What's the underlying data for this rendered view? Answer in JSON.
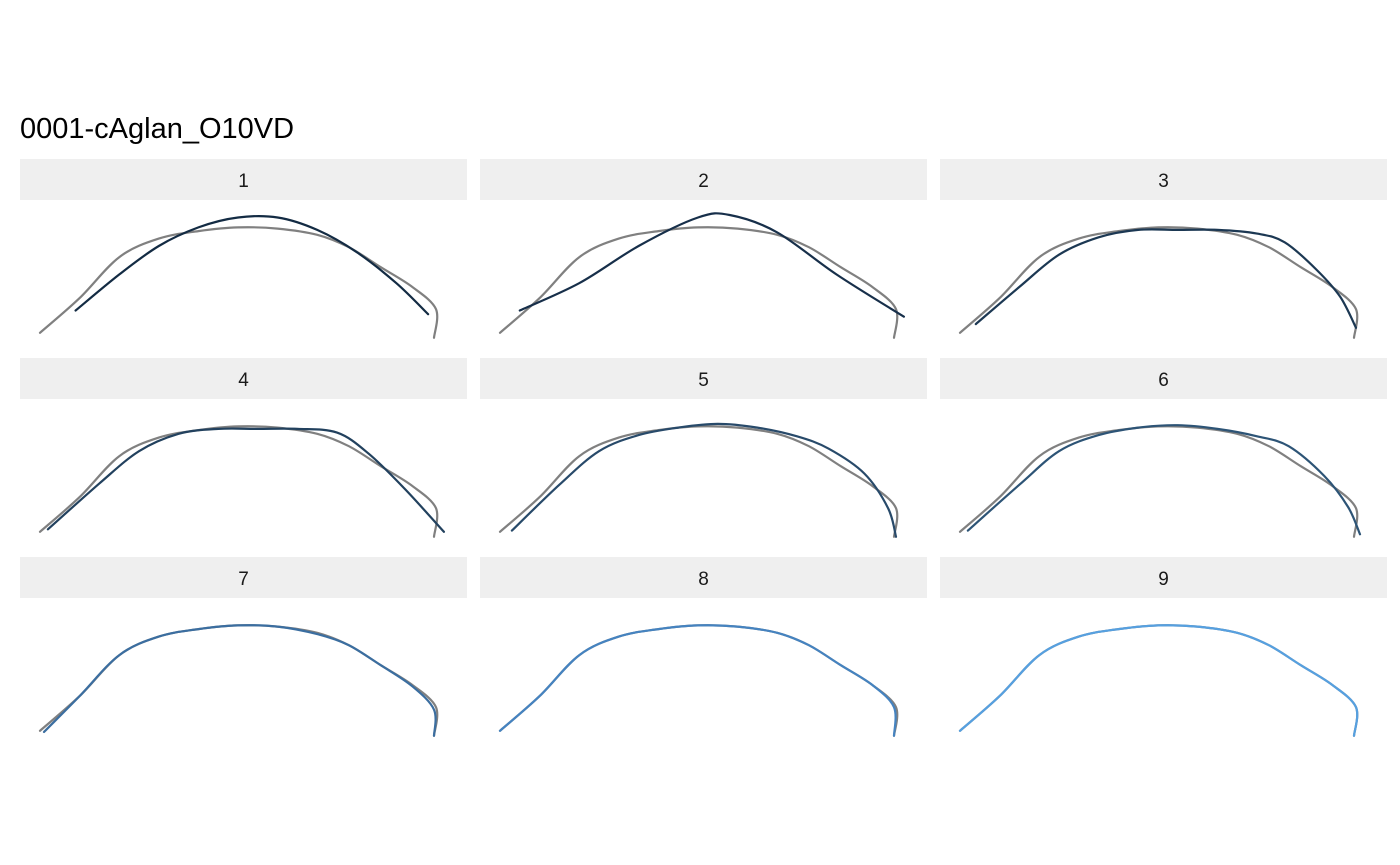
{
  "chart_data": {
    "type": "line",
    "title": "0001-cAglan_O10VD",
    "grid": false,
    "legend": "none",
    "xlim": [
      0,
      1
    ],
    "ylim": [
      0,
      1
    ],
    "colors": {
      "reference": "#808080",
      "panels": [
        "#132b43",
        "#172f4a",
        "#1c3853",
        "#22415e",
        "#284a6a",
        "#2d5476",
        "#3b6ea0",
        "#4583c0",
        "#56a0e0"
      ]
    },
    "reference": {
      "x": [
        0.0,
        0.1,
        0.2,
        0.3,
        0.4,
        0.5,
        0.6,
        0.7,
        0.78,
        0.86,
        0.94,
        1.0,
        0.995
      ],
      "y": [
        0.05,
        0.33,
        0.66,
        0.81,
        0.87,
        0.9,
        0.89,
        0.84,
        0.74,
        0.58,
        0.42,
        0.24,
        0.01
      ]
    },
    "panels": [
      {
        "label": "1",
        "x": [
          0.09,
          0.2,
          0.3,
          0.4,
          0.5,
          0.6,
          0.7,
          0.8,
          0.9,
          0.98
        ],
        "y": [
          0.23,
          0.52,
          0.75,
          0.9,
          0.98,
          0.98,
          0.88,
          0.7,
          0.45,
          0.2
        ]
      },
      {
        "label": "2",
        "x": [
          0.05,
          0.2,
          0.35,
          0.5,
          0.58,
          0.7,
          0.85,
          1.02
        ],
        "y": [
          0.23,
          0.45,
          0.75,
          0.98,
          1.0,
          0.86,
          0.52,
          0.18
        ]
      },
      {
        "label": "3",
        "x": [
          0.04,
          0.15,
          0.25,
          0.35,
          0.45,
          0.55,
          0.65,
          0.75,
          0.82,
          0.9,
          0.96,
          1.0
        ],
        "y": [
          0.12,
          0.42,
          0.68,
          0.82,
          0.88,
          0.88,
          0.88,
          0.85,
          0.78,
          0.56,
          0.34,
          0.09
        ]
      },
      {
        "label": "4",
        "x": [
          0.02,
          0.15,
          0.25,
          0.35,
          0.45,
          0.55,
          0.65,
          0.75,
          0.83,
          0.92,
          1.02
        ],
        "y": [
          0.07,
          0.44,
          0.7,
          0.84,
          0.88,
          0.88,
          0.88,
          0.85,
          0.68,
          0.4,
          0.05
        ]
      },
      {
        "label": "5",
        "x": [
          0.03,
          0.15,
          0.25,
          0.35,
          0.45,
          0.55,
          0.65,
          0.75,
          0.83,
          0.92,
          0.98,
          1.0
        ],
        "y": [
          0.06,
          0.43,
          0.7,
          0.83,
          0.89,
          0.92,
          0.89,
          0.82,
          0.72,
          0.52,
          0.24,
          0.01
        ]
      },
      {
        "label": "6",
        "x": [
          0.02,
          0.15,
          0.25,
          0.35,
          0.45,
          0.55,
          0.65,
          0.75,
          0.83,
          0.92,
          0.98,
          1.01
        ],
        "y": [
          0.06,
          0.43,
          0.7,
          0.83,
          0.89,
          0.91,
          0.88,
          0.82,
          0.74,
          0.5,
          0.25,
          0.03
        ]
      },
      {
        "label": "7",
        "x": [
          0.01,
          0.1,
          0.2,
          0.3,
          0.4,
          0.5,
          0.6,
          0.7,
          0.78,
          0.86,
          0.94,
          0.995,
          0.995
        ],
        "y": [
          0.04,
          0.33,
          0.66,
          0.81,
          0.87,
          0.9,
          0.89,
          0.83,
          0.74,
          0.58,
          0.41,
          0.22,
          0.01
        ]
      },
      {
        "label": "8",
        "x": [
          0.0,
          0.1,
          0.2,
          0.3,
          0.4,
          0.5,
          0.6,
          0.7,
          0.78,
          0.86,
          0.94,
          0.995,
          0.995
        ],
        "y": [
          0.05,
          0.33,
          0.66,
          0.81,
          0.87,
          0.9,
          0.89,
          0.84,
          0.74,
          0.58,
          0.42,
          0.24,
          0.01
        ]
      },
      {
        "label": "9",
        "x": [
          0.0,
          0.1,
          0.2,
          0.3,
          0.4,
          0.5,
          0.6,
          0.7,
          0.78,
          0.86,
          0.94,
          1.0,
          0.995
        ],
        "y": [
          0.05,
          0.33,
          0.66,
          0.81,
          0.87,
          0.9,
          0.89,
          0.84,
          0.74,
          0.58,
          0.42,
          0.24,
          0.01
        ]
      }
    ]
  }
}
